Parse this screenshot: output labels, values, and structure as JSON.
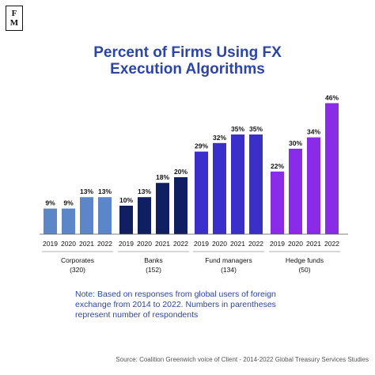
{
  "logo": {
    "line1": "F",
    "line2": "M"
  },
  "title_line1": "Percent of Firms Using FX",
  "title_line2": "Execution Algorithms",
  "chart_data": {
    "type": "bar",
    "title": "Percent of Firms Using FX Execution Algorithms",
    "ylim": [
      0,
      50
    ],
    "grid": false,
    "groups": [
      {
        "name": "Corporates",
        "count": "(320)",
        "color": "#5b86c9",
        "categories": [
          "2019",
          "2020",
          "2021",
          "2022"
        ],
        "values": [
          9,
          9,
          13,
          13
        ]
      },
      {
        "name": "Banks",
        "count": "(152)",
        "color": "#0f1f62",
        "categories": [
          "2019",
          "2020",
          "2021",
          "2022"
        ],
        "values": [
          10,
          13,
          18,
          20
        ]
      },
      {
        "name": "Fund managers",
        "count": "(134)",
        "color": "#3b2fc9",
        "categories": [
          "2019",
          "2020",
          "2021",
          "2022"
        ],
        "values": [
          29,
          32,
          35,
          35
        ]
      },
      {
        "name": "Hedge funds",
        "count": "(50)",
        "color": "#8a2be8",
        "categories": [
          "2019",
          "2020",
          "2021",
          "2022"
        ],
        "values": [
          22,
          30,
          34,
          46
        ]
      }
    ]
  },
  "note": "Note: Based on responses from global users of foreign exchange from 2014 to 2022. Numbers in parentheses represent number of respondents",
  "source": "Source: Coalition Greenwich voice of Client - 2014-2022 Global Treasury Services Studies"
}
